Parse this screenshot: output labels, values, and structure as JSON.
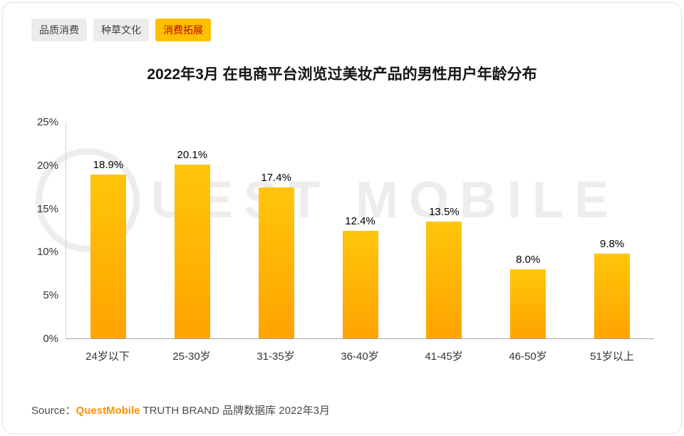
{
  "tabs": [
    {
      "label": "品质消费",
      "active": false
    },
    {
      "label": "种草文化",
      "active": false
    },
    {
      "label": "消费拓展",
      "active": true
    }
  ],
  "title": "2022年3月 在电商平台浏览过美妆产品的男性用户年龄分布",
  "chart_data": {
    "type": "bar",
    "title": "2022年3月 在电商平台浏览过美妆产品的男性用户年龄分布",
    "categories": [
      "24岁以下",
      "25-30岁",
      "31-35岁",
      "36-40岁",
      "41-45岁",
      "46-50岁",
      "51岁以上"
    ],
    "values": [
      18.9,
      20.1,
      17.4,
      12.4,
      13.5,
      8.0,
      9.8
    ],
    "value_labels": [
      "18.9%",
      "20.1%",
      "17.4%",
      "12.4%",
      "13.5%",
      "8.0%",
      "9.8%"
    ],
    "xlabel": "",
    "ylabel": "",
    "ylim": [
      0,
      25
    ],
    "yticks": [
      "0%",
      "5%",
      "10%",
      "15%",
      "20%",
      "25%"
    ],
    "grid": false,
    "legend": false,
    "bar_gradient": [
      "#FFC60A",
      "#FFA300"
    ]
  },
  "watermark": {
    "logo": "Q",
    "text": "UEST MOBILE"
  },
  "source": {
    "prefix": "Source：",
    "brand": "QuestMobile",
    "rest": " TRUTH BRAND 品牌数据库 2022年3月"
  },
  "colors": {
    "tab_active_bg": "#FFC000",
    "tab_active_text": "#C00000",
    "tab_bg": "#ECECEC",
    "bar_top": "#FFC60A",
    "bar_bottom": "#FFA300",
    "axis_line": "#A8A8A8",
    "source_brand": "#FF9100",
    "watermark": "#EDEDED"
  }
}
